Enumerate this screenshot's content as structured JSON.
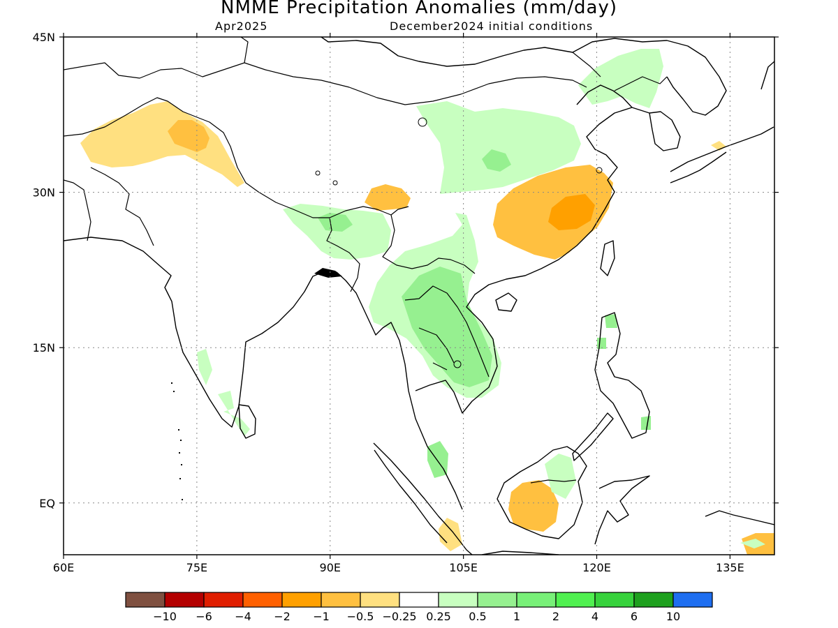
{
  "title": "NMME Precipitation Anomalies (mm/day)",
  "subtitle_left": "Apr2025",
  "subtitle_right": "December2024 initial conditions",
  "axes": {
    "lon_labels": [
      "60E",
      "75E",
      "90E",
      "105E",
      "120E",
      "135E"
    ],
    "lat_labels": [
      "45N",
      "30N",
      "15N",
      "EQ"
    ],
    "lon_range": [
      60,
      140
    ],
    "lat_range": [
      -5,
      45
    ],
    "grid": true
  },
  "colorbar": {
    "colors": [
      "#7f5040",
      "#b40000",
      "#e01e00",
      "#ff6000",
      "#ffa000",
      "#ffc040",
      "#ffe080",
      "#ffffff",
      "#c8ffc0",
      "#96f090",
      "#78f078",
      "#50f050",
      "#37d23c",
      "#1ea01e",
      "#1e6ef0"
    ],
    "labels": [
      "−10",
      "−6",
      "−4",
      "−2",
      "−1",
      "−0.5",
      "−0.25",
      "0.25",
      "0.5",
      "1",
      "2",
      "4",
      "6",
      "10"
    ]
  }
}
